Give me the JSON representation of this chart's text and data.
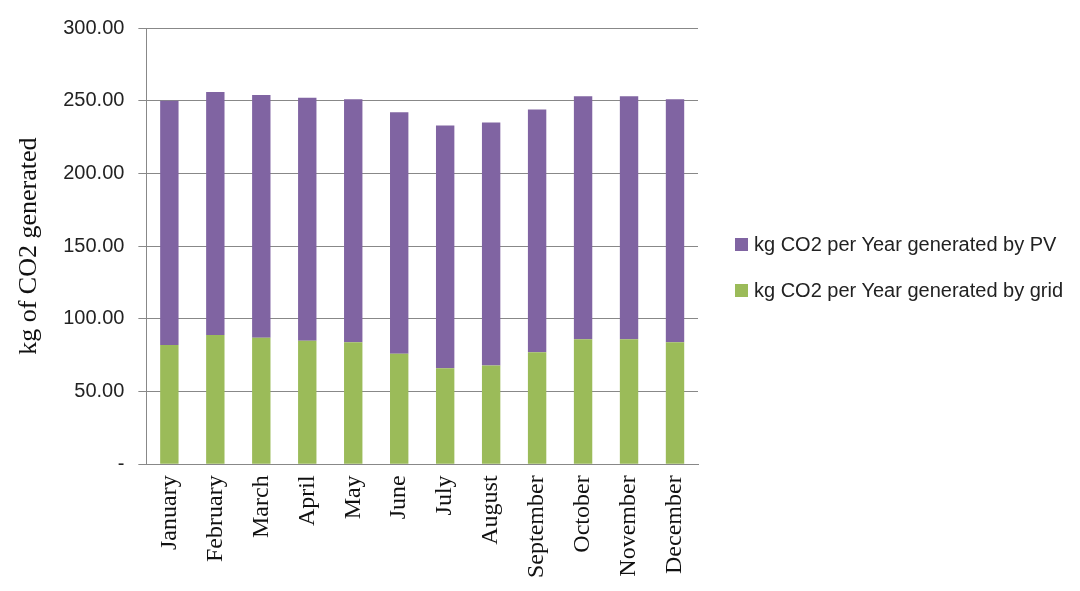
{
  "chart_data": {
    "type": "bar",
    "stacked": true,
    "ylabel": "kg of CO2 generated",
    "categories": [
      "January",
      "February",
      "March",
      "April",
      "May",
      "June",
      "July",
      "August",
      "September",
      "October",
      "November",
      "December"
    ],
    "series": [
      {
        "name": "kg CO2  per Year generated by grid",
        "color": "#9bbb59",
        "values": [
          82,
          89,
          87,
          85,
          84,
          76,
          66,
          68,
          77,
          86,
          86,
          84
        ]
      },
      {
        "name": "kg CO2  per Year generated by PV",
        "color": "#8064a2",
        "values": [
          168,
          167,
          167,
          167,
          167,
          166,
          167,
          167,
          167,
          167,
          167,
          167
        ]
      }
    ],
    "ylim": [
      0,
      300
    ],
    "yticks": [
      {
        "value": 0,
        "label": "-"
      },
      {
        "value": 50,
        "label": "50.00"
      },
      {
        "value": 100,
        "label": "100.00"
      },
      {
        "value": 150,
        "label": "150.00"
      },
      {
        "value": 200,
        "label": "200.00"
      },
      {
        "value": 250,
        "label": "250.00"
      },
      {
        "value": 300,
        "label": "300.00"
      }
    ],
    "grid": "y",
    "legend": "right"
  }
}
